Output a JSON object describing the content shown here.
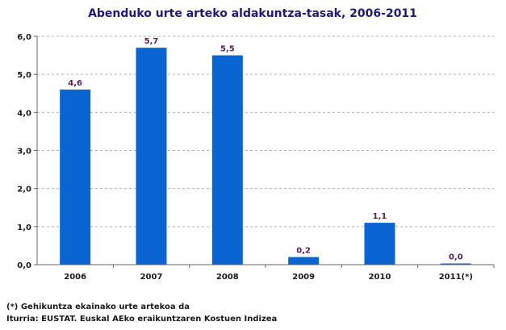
{
  "chart_data": {
    "type": "bar",
    "title": "Abenduko urte arteko aldakuntza-tasak, 2006-2011",
    "xlabel": "",
    "ylabel": "",
    "categories": [
      "2006",
      "2007",
      "2008",
      "2009",
      "2010",
      "2011(*)"
    ],
    "values": [
      4.6,
      5.7,
      5.5,
      0.2,
      1.1,
      0.0
    ],
    "data_labels": [
      "4,6",
      "5,7",
      "5,5",
      "0,2",
      "1,1",
      "0,0"
    ],
    "ylim": [
      0,
      6
    ],
    "yticks": [
      0,
      1,
      2,
      3,
      4,
      5,
      6
    ],
    "ytick_labels": [
      "0,0",
      "1,0",
      "2,0",
      "3,0",
      "4,0",
      "5,0",
      "6,0"
    ],
    "grid": true,
    "bar_color": "#0a64d2",
    "label_color": "#5a1f5a"
  },
  "notes": {
    "footnote": "(*) Gehikuntza ekainako urte artekoa da",
    "source": "Iturria: EUSTAT. Euskal AEko eraikuntzaren Kostuen Indizea"
  }
}
